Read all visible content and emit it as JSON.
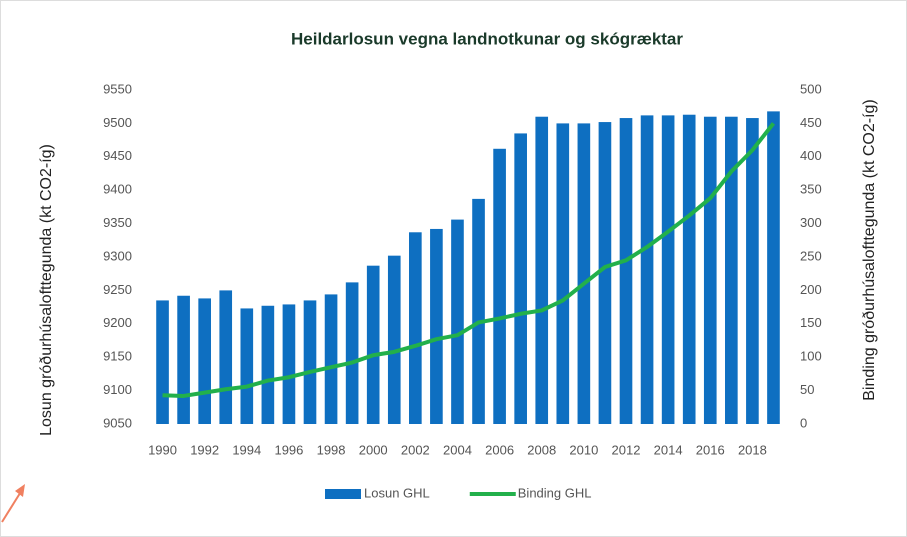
{
  "chart_data": {
    "type": "bar_line",
    "title": "Heildarlosun vegna landnotkunar og skógræktar",
    "y_label": "Losun gróðurhúsalofttegunda (kt CO2-íg)",
    "y2_label": "Binding gróðurhúsalofttegunda (kt CO2-íg)",
    "categories": [
      "1990",
      null,
      "1992",
      null,
      "1994",
      null,
      "1996",
      null,
      "1998",
      null,
      "2000",
      null,
      "2002",
      null,
      "2004",
      null,
      "2006",
      null,
      "2008",
      null,
      "2010",
      null,
      "2012",
      null,
      "2014",
      null,
      "2016",
      null,
      "2018",
      null
    ],
    "series": [
      {
        "name": "Losun GHL",
        "type": "bar",
        "axis": "y",
        "color": "#0e6fc1",
        "values": [
          9235,
          9242,
          9238,
          9250,
          9223,
          9227,
          9229,
          9235,
          9244,
          9262,
          9287,
          9302,
          9337,
          9342,
          9356,
          9387,
          9462,
          9485,
          9510,
          9500,
          9500,
          9502,
          9508,
          9512,
          9512,
          9513,
          9510,
          9510,
          9508,
          9518
        ]
      },
      {
        "name": "Binding GHL",
        "type": "line",
        "axis": "y2",
        "color": "#22b04b",
        "values": [
          43,
          42,
          47,
          52,
          56,
          65,
          70,
          78,
          85,
          92,
          103,
          108,
          117,
          127,
          133,
          152,
          158,
          165,
          170,
          185,
          210,
          235,
          245,
          265,
          288,
          312,
          338,
          378,
          410,
          450
        ]
      }
    ],
    "ylim": [
      9050,
      9550
    ],
    "yticks": [
      9050,
      9100,
      9150,
      9200,
      9250,
      9300,
      9350,
      9400,
      9450,
      9500,
      9550
    ],
    "y2lim": [
      0,
      500
    ],
    "y2ticks": [
      0,
      50,
      100,
      150,
      200,
      250,
      300,
      350,
      400,
      450,
      500
    ],
    "grid": false,
    "legend": "bottom"
  }
}
